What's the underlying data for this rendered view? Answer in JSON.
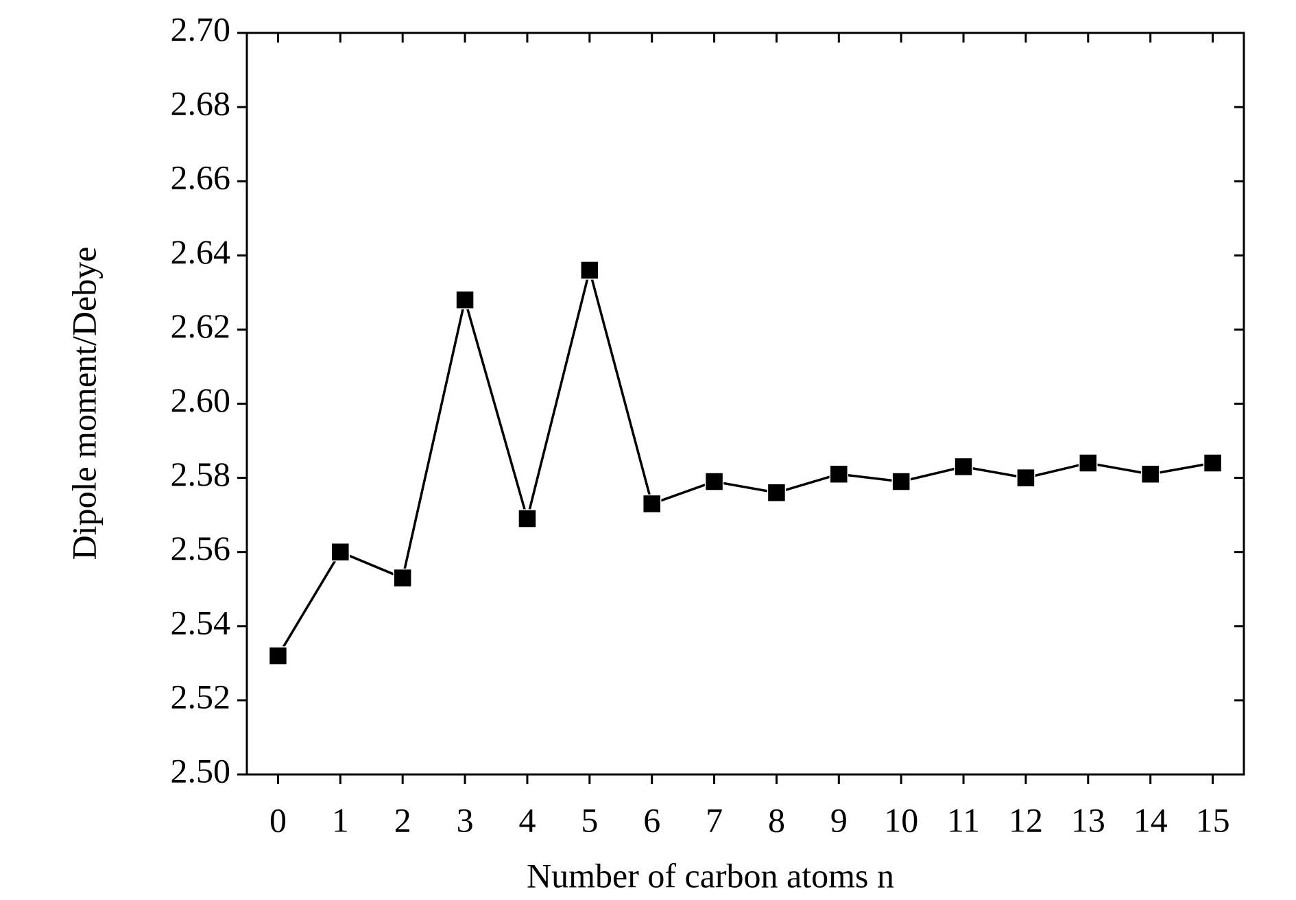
{
  "chart_data": {
    "type": "line",
    "xlabel": "Number of carbon atoms n",
    "ylabel": "Dipole moment/Debye",
    "x": [
      0,
      1,
      2,
      3,
      4,
      5,
      6,
      7,
      8,
      9,
      10,
      11,
      12,
      13,
      14,
      15
    ],
    "values": [
      2.532,
      2.56,
      2.553,
      2.628,
      2.569,
      2.636,
      2.573,
      2.579,
      2.576,
      2.581,
      2.579,
      2.583,
      2.58,
      2.584,
      2.581,
      2.584
    ],
    "color": "#000000",
    "marker": "square",
    "xlim": [
      -0.5,
      15.5
    ],
    "xticks": [
      0,
      1,
      2,
      3,
      4,
      5,
      6,
      7,
      8,
      9,
      10,
      11,
      12,
      13,
      14,
      15
    ],
    "ylim": [
      2.5,
      2.7
    ],
    "yticks": [
      {
        "value": 2.5,
        "label": "2.50"
      },
      2.52,
      2.54,
      2.56,
      2.58,
      {
        "value": 2.6,
        "label": "2.60"
      },
      2.62,
      2.64,
      2.66,
      2.68,
      {
        "value": 2.7,
        "label": "2.70"
      }
    ],
    "grid": false
  }
}
